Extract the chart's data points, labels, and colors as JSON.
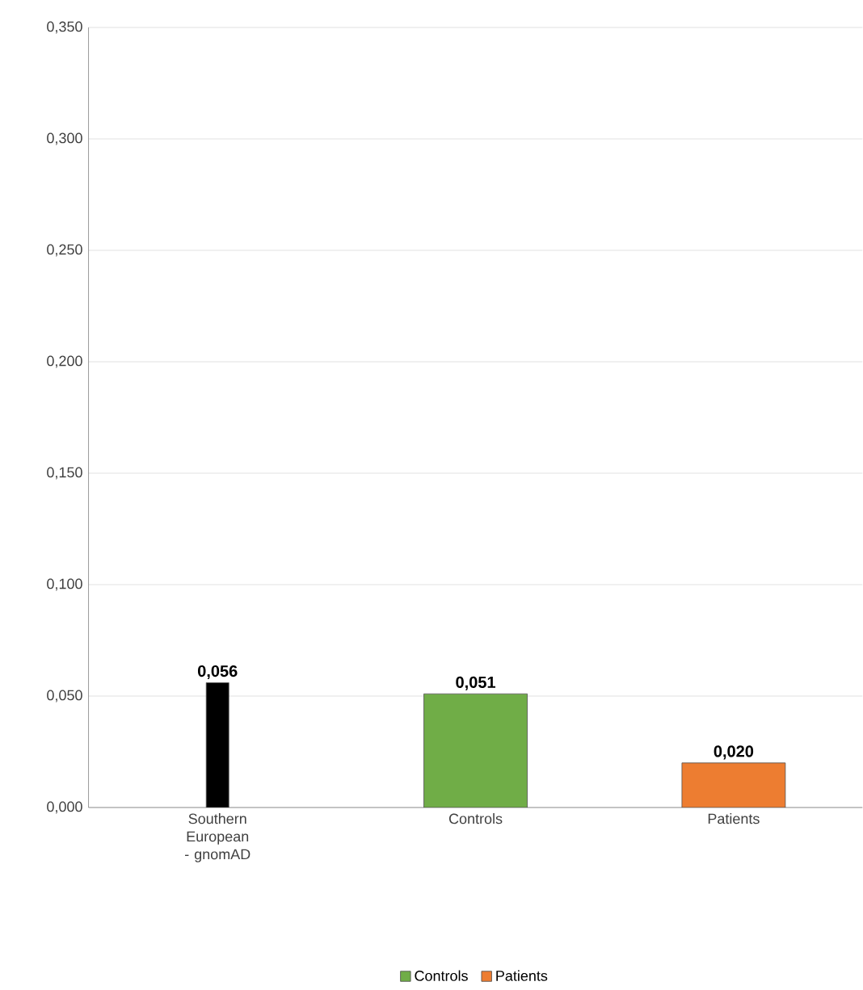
{
  "chart_data": {
    "type": "bar",
    "categories": [
      "Southern European - gnomAD",
      "Controls",
      "Patients"
    ],
    "series": [
      {
        "color": "#000000",
        "values": [
          0.056,
          null,
          null
        ],
        "value_labels": [
          "0,056",
          null,
          null
        ]
      },
      {
        "name": "Controls",
        "color": "#70ad47",
        "values": [
          null,
          0.051,
          null
        ],
        "value_labels": [
          null,
          "0,051",
          null
        ]
      },
      {
        "name": "Patients",
        "color": "#ed7d31",
        "values": [
          null,
          null,
          0.02
        ],
        "value_labels": [
          null,
          null,
          "0,020"
        ]
      }
    ],
    "ylim": [
      0,
      0.35
    ],
    "yticks": [
      {
        "value": 0,
        "label": "0,000"
      },
      {
        "value": 0.05,
        "label": "0,050"
      },
      {
        "value": 0.1,
        "label": "0,100"
      },
      {
        "value": 0.15,
        "label": "0,150"
      },
      {
        "value": 0.2,
        "label": "0,200"
      },
      {
        "value": 0.25,
        "label": "0,250"
      },
      {
        "value": 0.3,
        "label": "0,300"
      },
      {
        "value": 0.35,
        "label": "0,350"
      }
    ],
    "grid": "y",
    "legend": "bottom"
  }
}
